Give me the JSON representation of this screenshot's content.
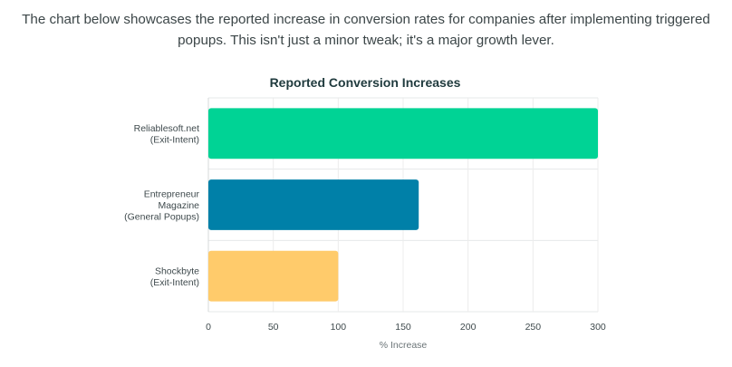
{
  "intro": {
    "line1": "The chart below showcases the reported increase in conversion rates for companies after implementing triggered",
    "line2": "popups. This isn't just a minor tweak; it's a major growth lever."
  },
  "chart_data": {
    "type": "bar",
    "orientation": "horizontal",
    "title": "Reported Conversion Increases",
    "xlabel": "% Increase",
    "ylabel": "",
    "xlim": [
      0,
      300
    ],
    "xticks": [
      0,
      50,
      100,
      150,
      200,
      250,
      300
    ],
    "grid": true,
    "legend": "none",
    "categories": [
      [
        "Reliablesoft.net",
        "(Exit-Intent)"
      ],
      [
        "Entrepreneur",
        "Magazine",
        "(General Popups)"
      ],
      [
        "Shockbyte",
        "(Exit-Intent)"
      ]
    ],
    "values": [
      300,
      162,
      100
    ],
    "colors": [
      "#00d395",
      "#0080a8",
      "#ffcb6b"
    ]
  }
}
